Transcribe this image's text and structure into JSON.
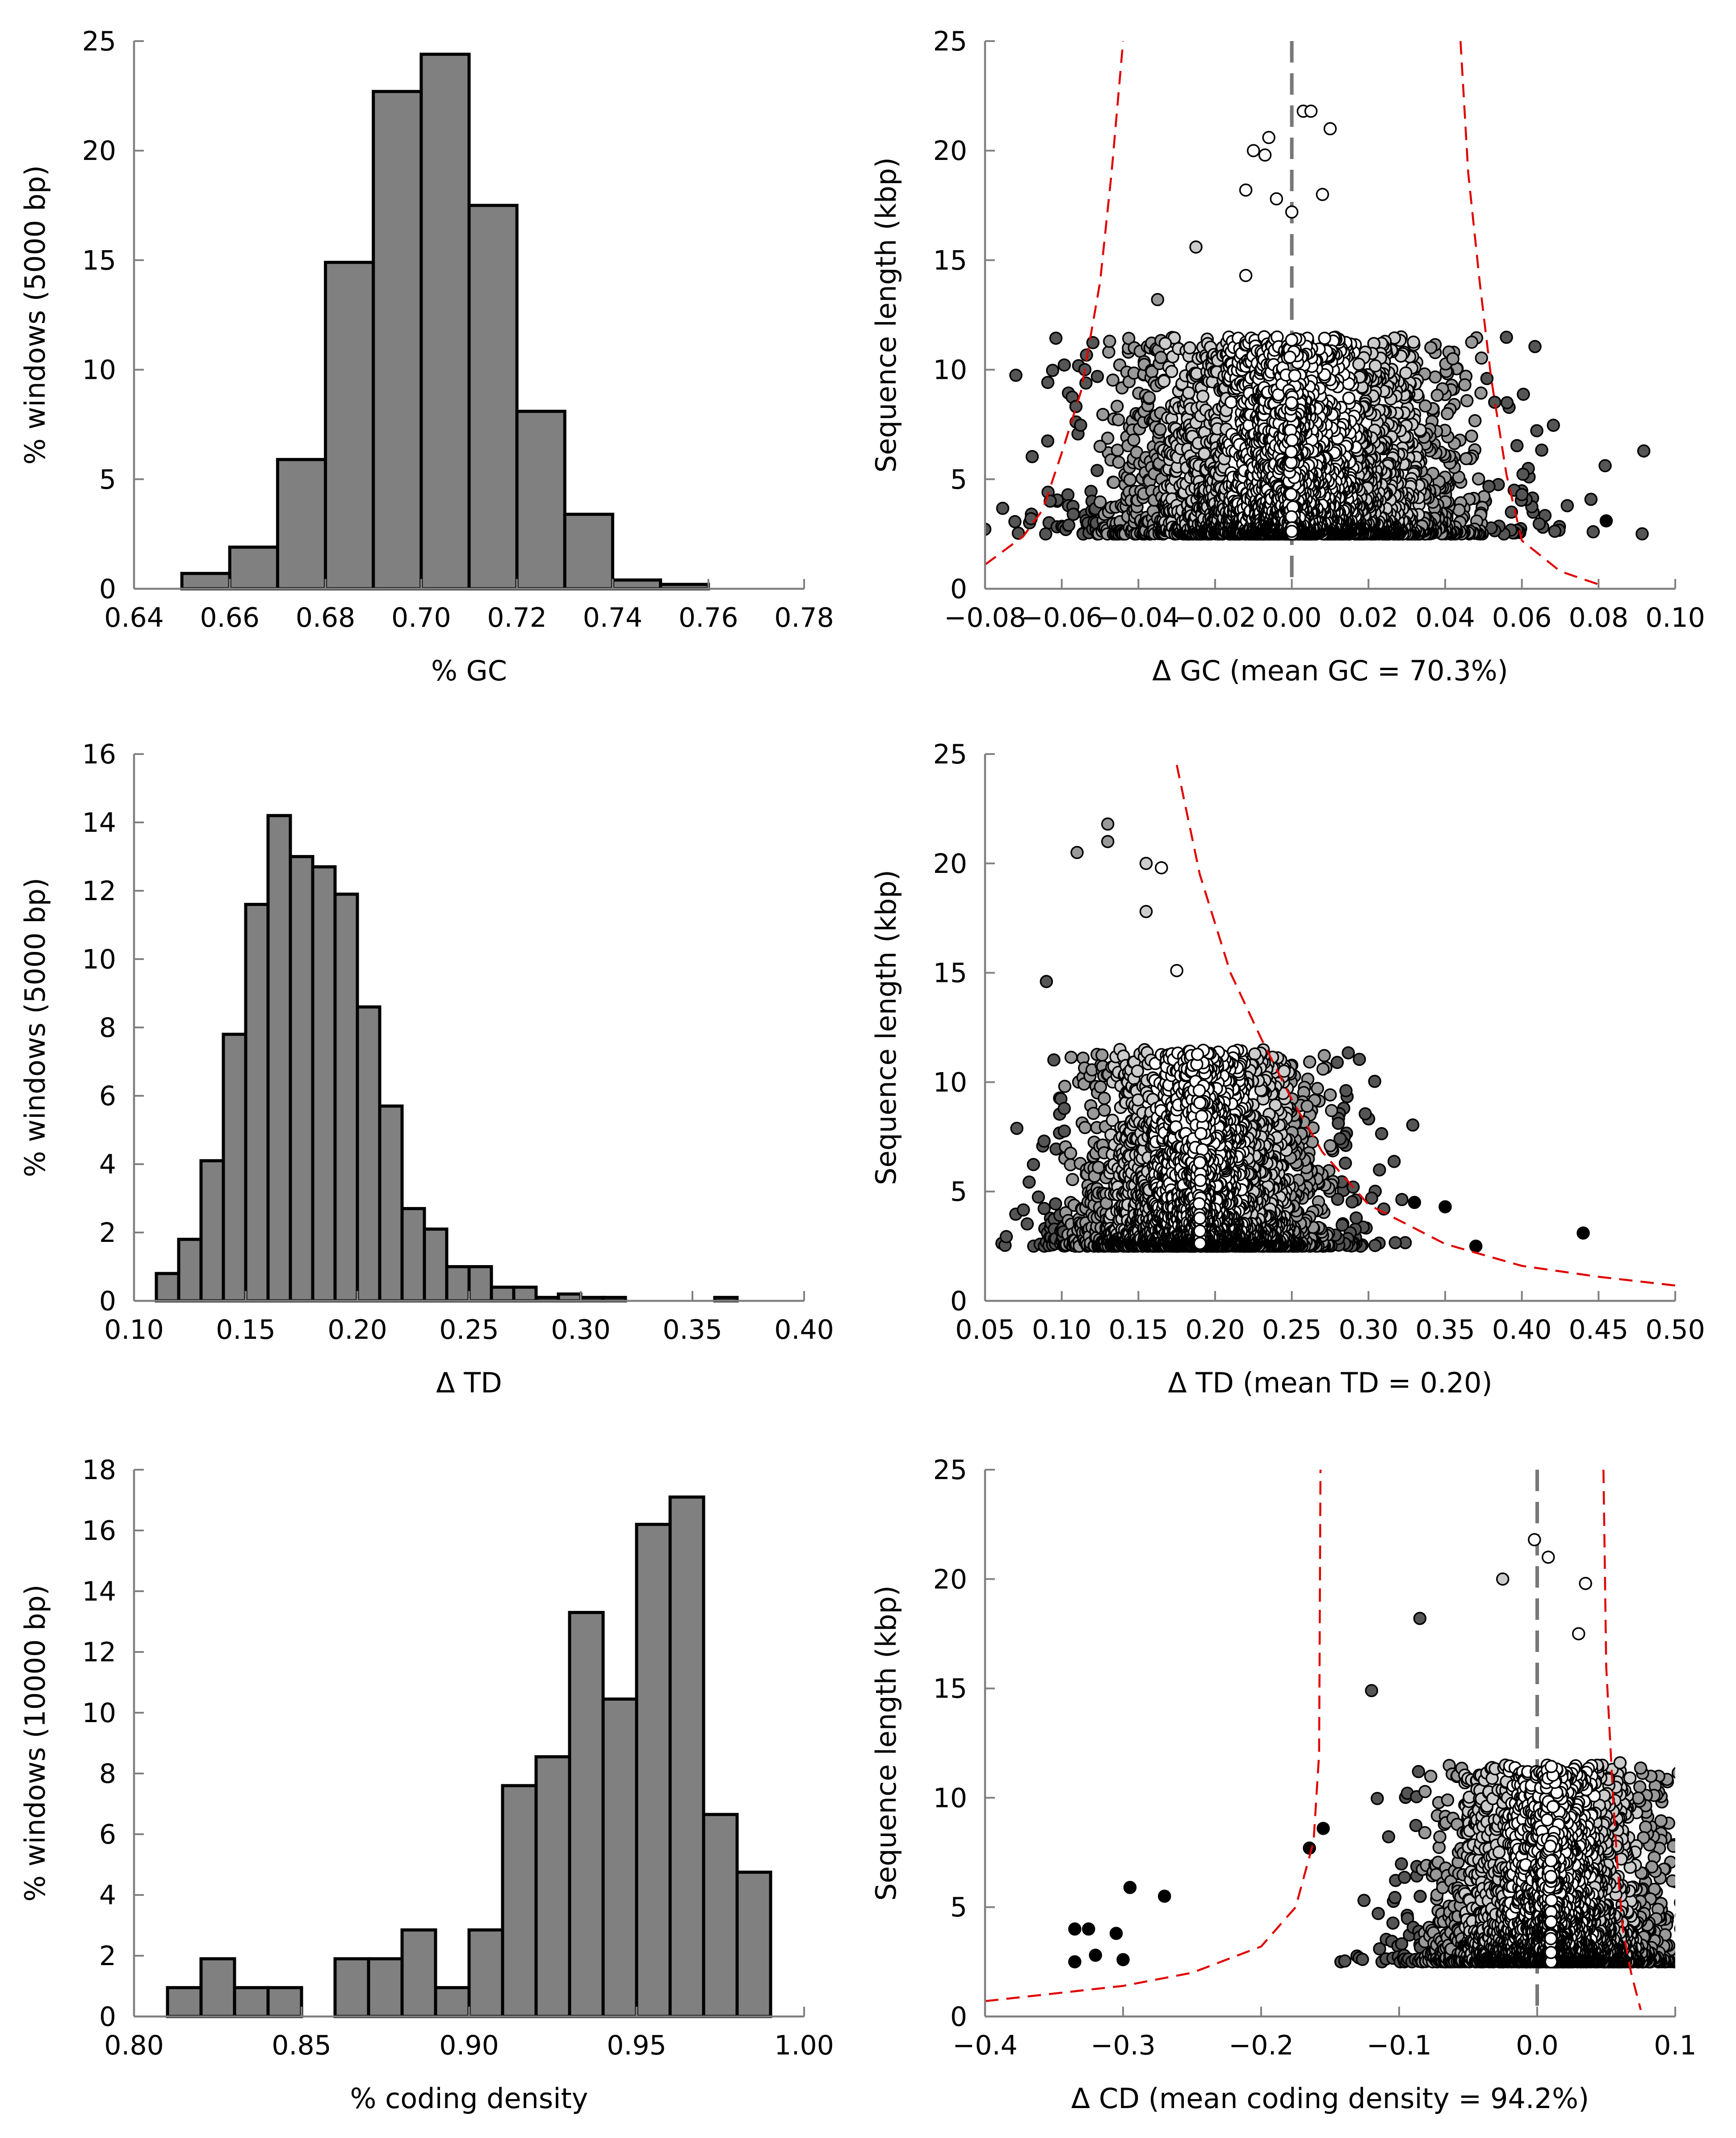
{
  "colors": {
    "bar_fill": "#808080",
    "bar_stroke": "#000000",
    "axis": "#808080",
    "limit_curve": "#e00000",
    "zero_line": "#777777",
    "point_shades": [
      "#ffffff",
      "#cccccc",
      "#999999",
      "#555555",
      "#000000"
    ]
  },
  "chart_data": [
    {
      "type": "bar",
      "panel": "gc-histogram",
      "xlabel": "% GC",
      "ylabel": "% windows (5000 bp)",
      "xlim": [
        0.64,
        0.78
      ],
      "ylim": [
        0,
        25
      ],
      "xticks": [
        "0.64",
        "0.66",
        "0.68",
        "0.70",
        "0.72",
        "0.74",
        "0.76",
        "0.78"
      ],
      "yticks": [
        "0",
        "5",
        "10",
        "15",
        "20",
        "25"
      ],
      "bin_edges": [
        0.65,
        0.66,
        0.67,
        0.68,
        0.69,
        0.7,
        0.71,
        0.72,
        0.73,
        0.74,
        0.75,
        0.76
      ],
      "values": [
        0.7,
        1.9,
        5.9,
        14.9,
        22.7,
        24.4,
        17.5,
        8.1,
        3.4,
        0.4,
        0.2
      ]
    },
    {
      "type": "scatter",
      "panel": "gc-scatter",
      "xlabel": "Δ GC (mean GC = 70.3%)",
      "ylabel": "Sequence length (kbp)",
      "xlim": [
        -0.08,
        0.1
      ],
      "ylim": [
        0,
        25
      ],
      "xticks": [
        "−0.08",
        "−0.06",
        "−0.04",
        "−0.02",
        "0.00",
        "0.02",
        "0.04",
        "0.06",
        "0.08",
        "0.10"
      ],
      "yticks": [
        "0",
        "5",
        "10",
        "15",
        "20",
        "25"
      ],
      "zero_line_x": 0.0,
      "limit_curves": [
        [
          [
            -0.08,
            1.1
          ],
          [
            -0.07,
            2.4
          ],
          [
            -0.065,
            3.6
          ],
          [
            -0.06,
            6.2
          ],
          [
            -0.055,
            9.0
          ],
          [
            -0.05,
            14.0
          ],
          [
            -0.047,
            19.0
          ],
          [
            -0.044,
            25.0
          ]
        ],
        [
          [
            0.044,
            25.0
          ],
          [
            0.046,
            19.0
          ],
          [
            0.049,
            14.0
          ],
          [
            0.052,
            9.6
          ],
          [
            0.056,
            5.2
          ],
          [
            0.06,
            2.2
          ],
          [
            0.07,
            0.8
          ],
          [
            0.08,
            0.2
          ]
        ]
      ],
      "center": 0.0,
      "spread": 0.024,
      "n_points": 3000,
      "outliers": [
        [
          0.003,
          21.8
        ],
        [
          0.005,
          21.8
        ],
        [
          0.01,
          21.0
        ],
        [
          -0.006,
          20.6
        ],
        [
          -0.01,
          20.0
        ],
        [
          -0.007,
          19.8
        ],
        [
          0.0,
          17.2
        ],
        [
          0.008,
          18.0
        ],
        [
          -0.004,
          17.8
        ],
        [
          -0.012,
          18.2
        ],
        [
          -0.025,
          15.6
        ],
        [
          -0.012,
          14.3
        ],
        [
          0.042,
          10.5
        ],
        [
          -0.035,
          13.2
        ],
        [
          -0.033,
          11.2
        ],
        [
          -0.05,
          6.5
        ],
        [
          -0.063,
          4.0
        ],
        [
          0.082,
          3.1
        ],
        [
          -0.068,
          3.2
        ],
        [
          0.058,
          4.5
        ],
        [
          0.06,
          4.3
        ],
        [
          -0.057,
          3.4
        ]
      ]
    },
    {
      "type": "bar",
      "panel": "td-histogram",
      "xlabel": "Δ TD",
      "ylabel": "% windows (5000 bp)",
      "xlim": [
        0.1,
        0.4
      ],
      "ylim": [
        0,
        16
      ],
      "xticks": [
        "0.10",
        "0.15",
        "0.20",
        "0.25",
        "0.30",
        "0.35",
        "0.40"
      ],
      "yticks": [
        "0",
        "2",
        "4",
        "6",
        "8",
        "10",
        "12",
        "14",
        "16"
      ],
      "bin_edges": [
        0.11,
        0.12,
        0.13,
        0.14,
        0.15,
        0.16,
        0.17,
        0.18,
        0.19,
        0.2,
        0.21,
        0.22,
        0.23,
        0.24,
        0.25,
        0.26,
        0.27,
        0.28,
        0.29,
        0.3,
        0.31,
        0.32
      ],
      "values": [
        0.8,
        1.8,
        4.1,
        7.8,
        11.6,
        14.2,
        13.0,
        12.7,
        11.9,
        8.6,
        5.7,
        2.7,
        2.1,
        1.0,
        1.0,
        0.4,
        0.4,
        0.1,
        0.2,
        0.1,
        0.1
      ],
      "extra_bars": [
        {
          "x0": 0.36,
          "x1": 0.37,
          "value": 0.1
        }
      ]
    },
    {
      "type": "scatter",
      "panel": "td-scatter",
      "xlabel": "Δ TD (mean TD = 0.20)",
      "ylabel": "Sequence length (kbp)",
      "xlim": [
        0.05,
        0.5
      ],
      "ylim": [
        0,
        25
      ],
      "xticks": [
        "0.05",
        "0.10",
        "0.15",
        "0.20",
        "0.25",
        "0.30",
        "0.35",
        "0.40",
        "0.45",
        "0.50"
      ],
      "yticks": [
        "0",
        "5",
        "10",
        "15",
        "20",
        "25"
      ],
      "limit_curves": [
        [
          [
            0.175,
            24.5
          ],
          [
            0.19,
            19.5
          ],
          [
            0.21,
            15.0
          ],
          [
            0.23,
            12.0
          ],
          [
            0.25,
            9.2
          ],
          [
            0.27,
            6.8
          ],
          [
            0.3,
            4.4
          ],
          [
            0.35,
            2.6
          ],
          [
            0.4,
            1.6
          ],
          [
            0.45,
            1.1
          ],
          [
            0.5,
            0.7
          ]
        ]
      ],
      "center": 0.19,
      "spread": 0.042,
      "n_points": 2600,
      "outliers": [
        [
          0.13,
          21.8
        ],
        [
          0.13,
          21.0
        ],
        [
          0.11,
          20.5
        ],
        [
          0.155,
          20.0
        ],
        [
          0.165,
          19.8
        ],
        [
          0.175,
          15.1
        ],
        [
          0.09,
          14.6
        ],
        [
          0.155,
          17.8
        ],
        [
          0.245,
          10.5
        ],
        [
          0.26,
          8.9
        ],
        [
          0.44,
          3.1
        ],
        [
          0.37,
          2.5
        ],
        [
          0.35,
          4.3
        ],
        [
          0.31,
          4.2
        ],
        [
          0.33,
          4.5
        ],
        [
          0.29,
          5.2
        ]
      ]
    },
    {
      "type": "bar",
      "panel": "cd-histogram",
      "xlabel": "% coding density",
      "ylabel": "% windows (10000 bp)",
      "xlim": [
        0.8,
        1.0
      ],
      "ylim": [
        0,
        18
      ],
      "xticks": [
        "0.80",
        "0.85",
        "0.90",
        "0.95",
        "1.00"
      ],
      "yticks": [
        "0",
        "2",
        "4",
        "6",
        "8",
        "10",
        "12",
        "14",
        "16",
        "18"
      ],
      "bin_edges": [
        0.81,
        0.82,
        0.83,
        0.84,
        0.85,
        0.86,
        0.87,
        0.88,
        0.89,
        0.9,
        0.91,
        0.92,
        0.93,
        0.94,
        0.95,
        0.96,
        0.97,
        0.98,
        0.99
      ],
      "values": [
        0.95,
        1.9,
        0.95,
        0.95,
        0,
        1.9,
        1.9,
        2.85,
        0.95,
        2.85,
        7.6,
        8.55,
        13.3,
        10.45,
        16.2,
        17.1,
        6.65,
        4.75
      ]
    },
    {
      "type": "scatter",
      "panel": "cd-scatter",
      "xlabel": "Δ CD (mean coding density = 94.2%)",
      "ylabel": "Sequence length (kbp)",
      "xlim": [
        -0.4,
        0.1
      ],
      "ylim": [
        0,
        25
      ],
      "xticks": [
        "−0.4",
        "−0.3",
        "−0.2",
        "−0.1",
        "0.0",
        "0.1"
      ],
      "yticks": [
        "0",
        "5",
        "10",
        "15",
        "20",
        "25"
      ],
      "zero_line_x": 0.0,
      "limit_curves": [
        [
          [
            -0.4,
            0.7
          ],
          [
            -0.3,
            1.4
          ],
          [
            -0.25,
            2.0
          ],
          [
            -0.2,
            3.2
          ],
          [
            -0.175,
            5.0
          ],
          [
            -0.162,
            8.0
          ],
          [
            -0.158,
            12.0
          ],
          [
            -0.157,
            25.0
          ]
        ],
        [
          [
            0.048,
            25.0
          ],
          [
            0.05,
            16.0
          ],
          [
            0.055,
            10.0
          ],
          [
            0.058,
            7.0
          ],
          [
            0.062,
            4.0
          ],
          [
            0.068,
            2.0
          ],
          [
            0.075,
            0.3
          ]
        ]
      ],
      "center": 0.01,
      "spread": 0.045,
      "n_points": 2600,
      "outliers": [
        [
          -0.002,
          21.8
        ],
        [
          0.008,
          21.0
        ],
        [
          -0.025,
          20.0
        ],
        [
          0.035,
          19.8
        ],
        [
          0.03,
          17.5
        ],
        [
          -0.085,
          18.2
        ],
        [
          -0.12,
          14.9
        ],
        [
          -0.335,
          4.0
        ],
        [
          -0.325,
          4.0
        ],
        [
          -0.305,
          3.8
        ],
        [
          -0.295,
          5.9
        ],
        [
          -0.27,
          5.5
        ],
        [
          -0.335,
          2.5
        ],
        [
          -0.32,
          2.8
        ],
        [
          -0.3,
          2.6
        ],
        [
          -0.165,
          7.7
        ],
        [
          -0.155,
          8.6
        ],
        [
          0.06,
          11.6
        ]
      ]
    }
  ]
}
